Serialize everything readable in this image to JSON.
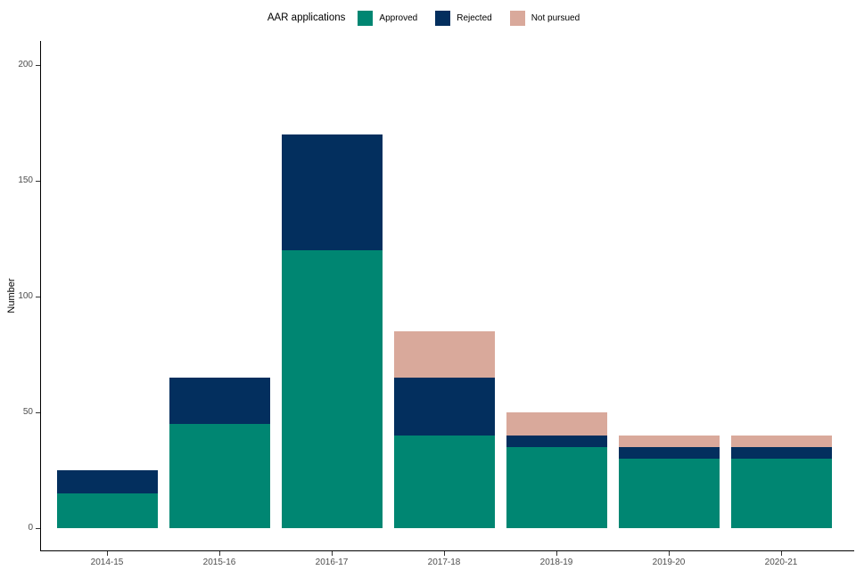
{
  "legend": {
    "title": "AAR applications",
    "items": [
      {
        "label": "Approved",
        "color": "#008672",
        "icon": "swatch-square"
      },
      {
        "label": "Rejected",
        "color": "#032f5e",
        "icon": "swatch-square"
      },
      {
        "label": "Not pursued",
        "color": "#d9a99b",
        "icon": "swatch-square"
      }
    ]
  },
  "chart_data": {
    "type": "bar",
    "stacked": true,
    "title": "",
    "categories": [
      "2014-15",
      "2015-16",
      "2016-17",
      "2017-18",
      "2018-19",
      "2019-20",
      "2020-21"
    ],
    "series": [
      {
        "name": "Approved",
        "color": "#008672",
        "values": [
          15,
          45,
          120,
          40,
          35,
          30,
          30
        ]
      },
      {
        "name": "Rejected",
        "color": "#032f5e",
        "values": [
          10,
          20,
          50,
          25,
          5,
          5,
          5
        ]
      },
      {
        "name": "Not pursued",
        "color": "#d9a99b",
        "values": [
          0,
          0,
          0,
          20,
          10,
          5,
          5
        ]
      }
    ],
    "totals": [
      25,
      65,
      170,
      85,
      50,
      40,
      40
    ],
    "xlabel": "",
    "ylabel": "Number",
    "ylim": [
      0,
      200
    ],
    "yticks": [
      0,
      50,
      100,
      150,
      200
    ],
    "grid": false,
    "legend_position": "top",
    "colors": {
      "axis_line": "#000000",
      "tick_mark": "#333333",
      "tick_text": "#4d4d4d",
      "axis_title_text": "#000000",
      "background": "#ffffff"
    }
  }
}
